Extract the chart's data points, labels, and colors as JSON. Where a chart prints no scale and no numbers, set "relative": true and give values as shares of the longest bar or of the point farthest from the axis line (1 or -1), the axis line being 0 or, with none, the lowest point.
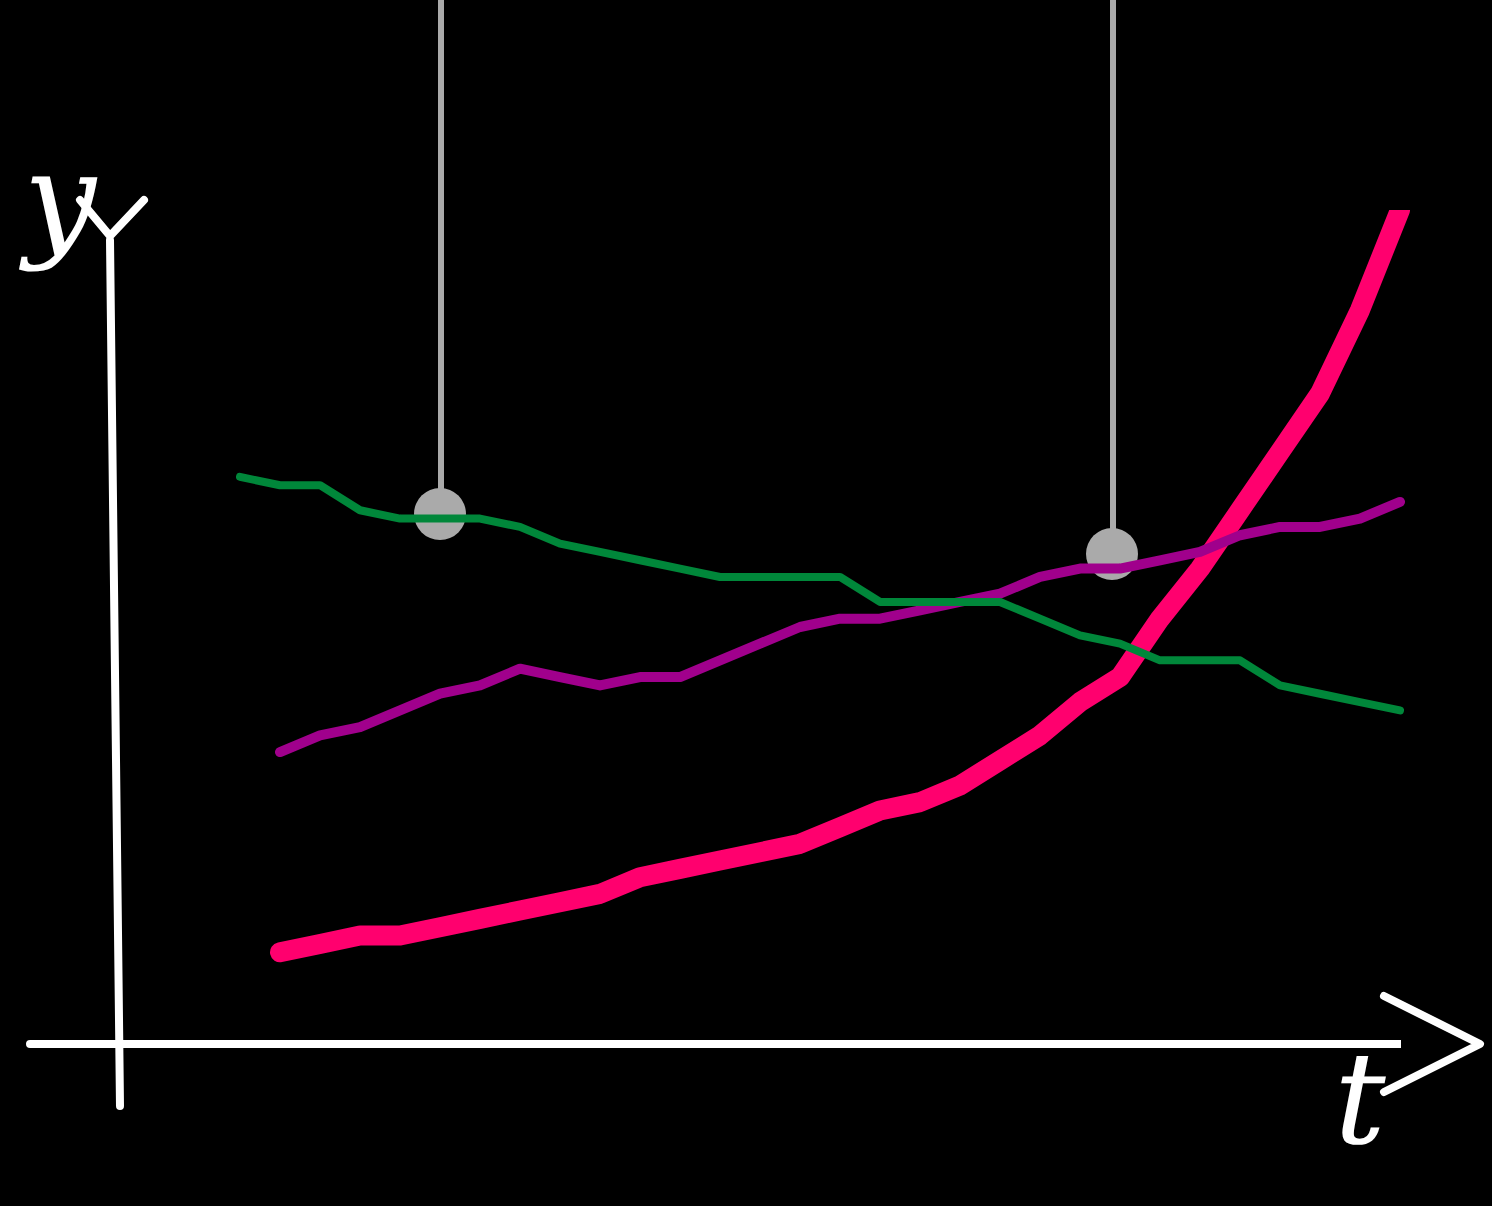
{
  "chart_data": {
    "type": "line",
    "relative": true,
    "tick_labels": false,
    "xlabel": "t",
    "ylabel": "y",
    "categories": [
      null,
      null,
      null,
      null,
      null,
      null,
      null,
      null,
      null,
      null,
      null,
      null,
      null,
      null,
      null,
      null,
      null,
      null,
      null,
      null,
      null,
      null,
      null,
      null,
      null,
      null,
      null,
      null,
      null,
      null
    ],
    "series": [
      {
        "color": "#00873a",
        "values": [
          0.68,
          0.67,
          0.67,
          0.64,
          0.63,
          0.63,
          0.63,
          0.62,
          0.6,
          0.59,
          0.58,
          0.57,
          0.56,
          0.56,
          0.56,
          0.56,
          0.53,
          0.53,
          0.53,
          0.53,
          0.51,
          0.49,
          0.48,
          0.46,
          0.46,
          0.46,
          0.43,
          0.42,
          0.41,
          0.4
        ]
      },
      {
        "color": "#a0008c",
        "values": [
          null,
          0.35,
          0.37,
          0.38,
          0.4,
          0.42,
          0.43,
          0.45,
          0.44,
          0.43,
          0.44,
          0.44,
          0.46,
          0.48,
          0.5,
          0.51,
          0.51,
          0.52,
          0.53,
          0.54,
          0.56,
          0.57,
          0.57,
          0.58,
          0.59,
          0.61,
          0.62,
          0.62,
          0.63,
          0.65
        ]
      },
      {
        "color": "#ff006e",
        "values": [
          null,
          0.11,
          0.12,
          0.13,
          0.13,
          0.14,
          0.15,
          0.16,
          0.17,
          0.18,
          0.2,
          0.21,
          0.22,
          0.23,
          0.24,
          0.26,
          0.28,
          0.29,
          0.31,
          0.34,
          0.37,
          0.41,
          0.44,
          0.51,
          0.57,
          0.64,
          0.71,
          0.78,
          0.88,
          1
        ]
      }
    ]
  }
}
